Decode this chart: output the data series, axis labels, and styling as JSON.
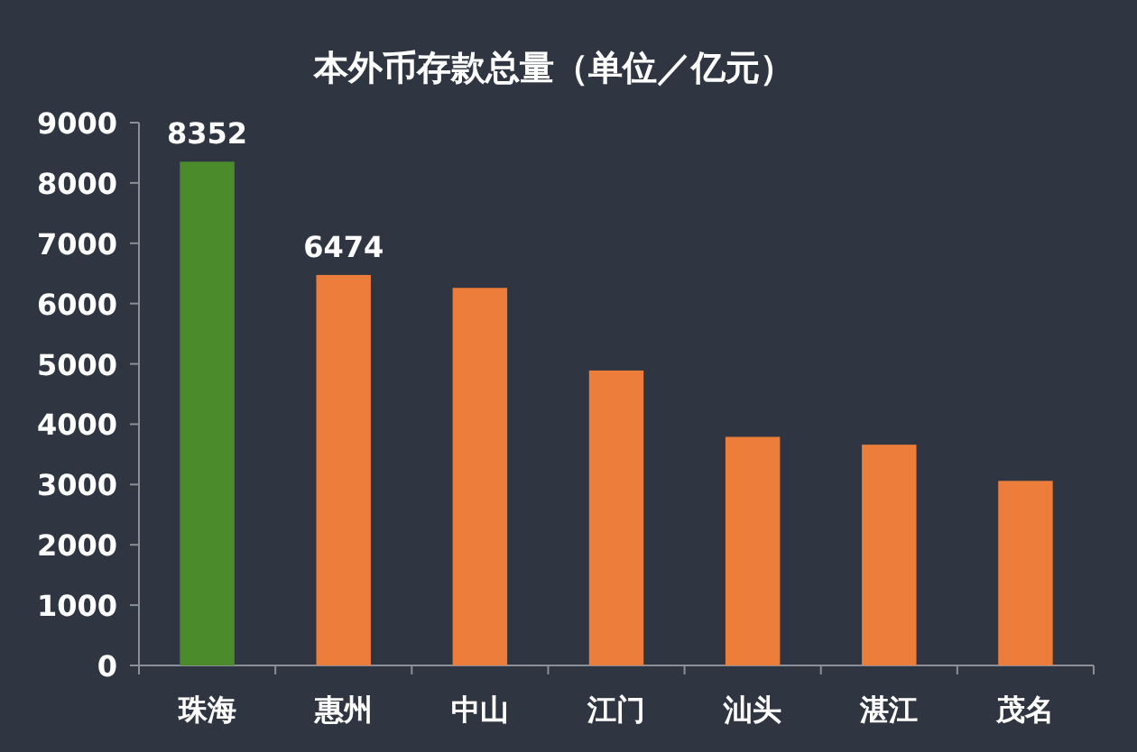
{
  "chart_data": {
    "type": "bar",
    "title": "本外币存款总量（单位／亿元）",
    "categories": [
      "珠海",
      "惠州",
      "中山",
      "江门",
      "汕头",
      "湛江",
      "茂名"
    ],
    "values": [
      8352,
      6474,
      6260,
      4890,
      3790,
      3660,
      3060
    ],
    "colors": [
      "#4b8b2b",
      "#ed7d3b",
      "#ed7d3b",
      "#ed7d3b",
      "#ed7d3b",
      "#ed7d3b",
      "#ed7d3b"
    ],
    "value_labels": [
      "8352",
      "6474",
      null,
      null,
      null,
      null,
      null
    ],
    "ylim": [
      0,
      9000
    ],
    "yticks": [
      0,
      1000,
      2000,
      3000,
      4000,
      5000,
      6000,
      7000,
      8000,
      9000
    ],
    "grid": false
  }
}
